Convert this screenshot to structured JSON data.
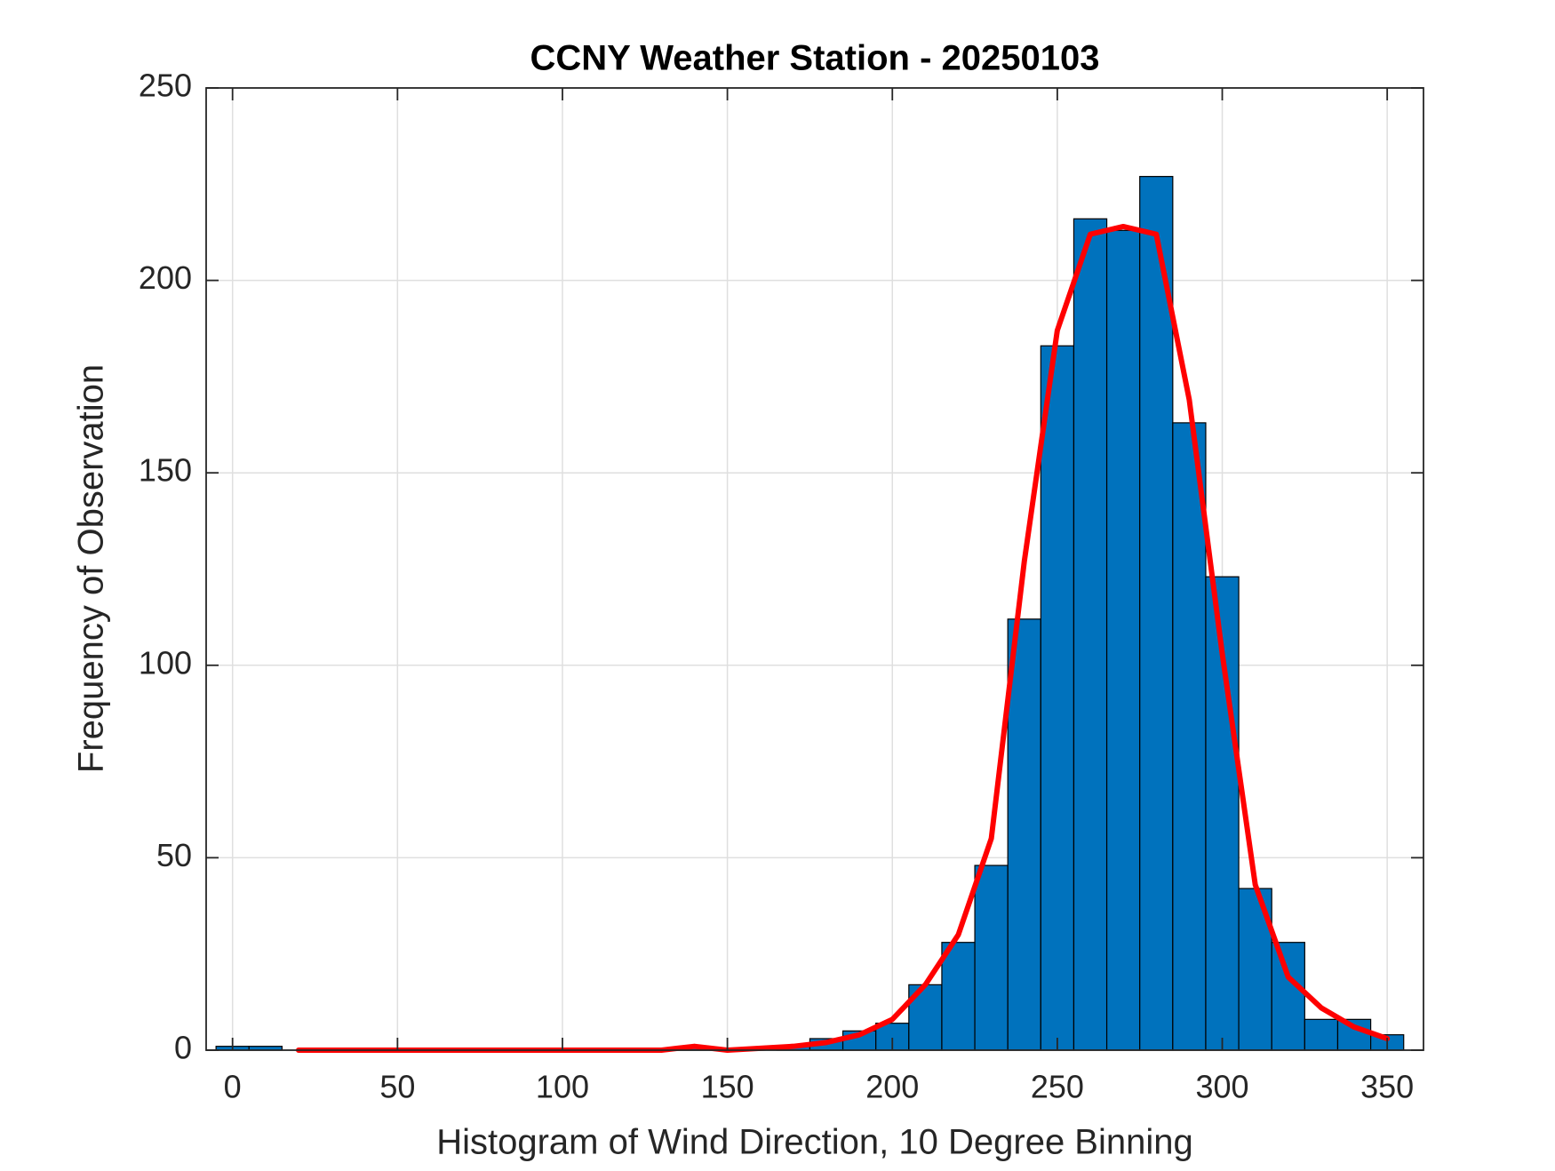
{
  "chart_data": {
    "type": "histogram",
    "title": "CCNY Weather Station - 20250103",
    "xlabel": "Histogram of Wind Direction, 10 Degree Binning",
    "ylabel": "Frequency of Observation",
    "bins": [
      -5,
      5,
      15,
      25,
      35,
      45,
      55,
      65,
      75,
      85,
      95,
      105,
      115,
      125,
      135,
      145,
      155,
      165,
      175,
      185,
      195,
      205,
      215,
      225,
      235,
      245,
      255,
      265,
      275,
      285,
      295,
      305,
      315,
      325,
      335,
      345,
      355
    ],
    "values": [
      1,
      1,
      0,
      0,
      0,
      0,
      0,
      0,
      0,
      0,
      0,
      0,
      0,
      0,
      1,
      0,
      0,
      1,
      3,
      5,
      7,
      17,
      28,
      48,
      112,
      183,
      216,
      213,
      227,
      163,
      123,
      42,
      28,
      8,
      8,
      4
    ],
    "color": "#0072BD",
    "curve": {
      "type": "line",
      "color": "#ff0000",
      "x": [
        20,
        30,
        40,
        50,
        60,
        70,
        80,
        90,
        100,
        110,
        120,
        130,
        140,
        150,
        160,
        170,
        180,
        190,
        200,
        210,
        220,
        230,
        240,
        250,
        260,
        270,
        280,
        290,
        300,
        310,
        320,
        330,
        340,
        350
      ],
      "values": [
        0,
        0,
        0,
        0,
        0,
        0,
        0,
        0,
        0,
        0,
        0,
        0,
        1,
        0,
        0.5,
        1,
        2,
        4,
        8,
        17,
        30,
        55,
        127,
        187,
        212,
        214,
        212,
        169,
        103,
        43,
        19,
        11,
        6,
        3
      ]
    },
    "xlim": [
      -8,
      361
    ],
    "xticks": [
      0,
      50,
      100,
      150,
      200,
      250,
      300,
      350
    ],
    "ylim": [
      0,
      250
    ],
    "yticks": [
      0,
      50,
      100,
      150,
      200,
      250
    ],
    "grid": true
  }
}
